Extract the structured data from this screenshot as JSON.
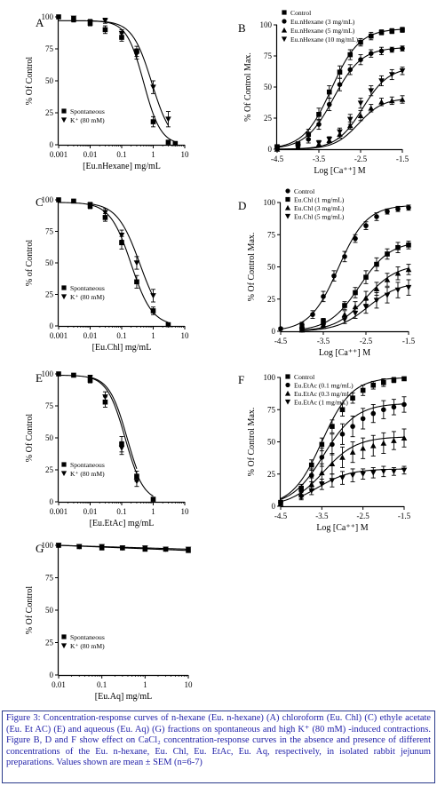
{
  "figure": {
    "caption": "Figure 3: Concentration-response curves of n-hexane (Eu. n-hexane) (A) chloroform (Eu. Chl) (C) ethyle acetate (Eu. Et AC) (E) and aqueous (Eu. Aq) (G) fractions on spontaneous and high K⁺ (80 mM) -induced contractions. Figure B, D and F show effect on CaCl₂ concentration-response curves in the absence and presence of different concentrations of the Eu. n-hexane, Eu. Chl, Eu. EtAc, Eu. Aq, respectively, in isolated rabbit jejunum preparations. Values shown are mean ± SEM (n=6-7)"
  },
  "chart_data": [
    {
      "id": "A",
      "panel_label": "A",
      "type": "line",
      "xscale": "log",
      "xlim": [
        0.001,
        10
      ],
      "ylim": [
        0,
        100
      ],
      "xticks": [
        "0.001",
        "0.01",
        "0.1",
        "1",
        "10"
      ],
      "yticks": [
        "0",
        "25",
        "50",
        "75",
        "100"
      ],
      "xlabel": "[Eu.nHexane] mg/mL",
      "ylabel": "% Of Control",
      "legend_position": "bottom-left",
      "series": [
        {
          "name": "Spontaneous",
          "marker": "square",
          "x": [
            0.001,
            0.003,
            0.01,
            0.03,
            0.1,
            0.3,
            1,
            3,
            5
          ],
          "y": [
            100,
            98,
            95,
            90,
            84,
            73,
            18,
            2,
            1
          ],
          "err": [
            0,
            2,
            2,
            3,
            3,
            4,
            4,
            1,
            1
          ],
          "curve": {
            "top": 97,
            "ec50": 0.5,
            "hill": 1.6
          }
        },
        {
          "name": "K⁺ (80 mM)",
          "marker": "tri-down",
          "x": [
            0.003,
            0.01,
            0.03,
            0.1,
            0.3,
            1,
            3
          ],
          "y": [
            99,
            96,
            97,
            87,
            71,
            45,
            20
          ],
          "err": [
            1,
            2,
            2,
            3,
            4,
            5,
            6
          ],
          "curve": {
            "top": 97,
            "ec50": 0.9,
            "hill": 1.4
          }
        }
      ]
    },
    {
      "id": "B",
      "panel_label": "B",
      "type": "line",
      "xlim": [
        -4.5,
        -1.5
      ],
      "ylim": [
        0,
        100
      ],
      "xticks": [
        "-4.5",
        "-3.5",
        "-2.5",
        "-1.5"
      ],
      "yticks": [
        "0",
        "25",
        "50",
        "75",
        "100"
      ],
      "xlabel": "Log [Ca⁺⁺] M",
      "ylabel": "% Of Control Max.",
      "legend_position": "top-left",
      "series": [
        {
          "name": "Control",
          "marker": "square",
          "x": [
            -4.5,
            -4.0,
            -3.75,
            -3.5,
            -3.25,
            -3.0,
            -2.75,
            -2.5,
            -2.25,
            -2.0,
            -1.75,
            -1.5
          ],
          "y": [
            2,
            4,
            12,
            28,
            46,
            62,
            76,
            86,
            91,
            94,
            95,
            96
          ],
          "err": [
            1,
            2,
            4,
            5,
            5,
            5,
            4,
            3,
            3,
            2,
            2,
            2
          ],
          "curve": {
            "bottom": 0,
            "top": 97,
            "ec50": -3.2,
            "hill": 1.3
          }
        },
        {
          "name": "Eu.nHexane (3 mg/mL)",
          "marker": "circle",
          "x": [
            -4.5,
            -4.0,
            -3.75,
            -3.5,
            -3.25,
            -3.0,
            -2.75,
            -2.5,
            -2.25,
            -2.0,
            -1.75,
            -1.5
          ],
          "y": [
            1,
            3,
            8,
            20,
            36,
            52,
            64,
            72,
            77,
            79,
            80,
            81
          ],
          "err": [
            1,
            2,
            3,
            4,
            5,
            5,
            4,
            4,
            3,
            3,
            2,
            2
          ],
          "curve": {
            "bottom": 0,
            "top": 82,
            "ec50": -3.15,
            "hill": 1.3
          }
        },
        {
          "name": "Eu.nHexane (5 mg/mL)",
          "marker": "tri-up",
          "x": [
            -4.5,
            -4.0,
            -3.5,
            -3.25,
            -3.0,
            -2.75,
            -2.5,
            -2.25,
            -2.0,
            -1.75,
            -1.5
          ],
          "y": [
            0,
            2,
            4,
            7,
            12,
            19,
            27,
            33,
            38,
            39,
            40
          ],
          "err": [
            0,
            1,
            2,
            2,
            3,
            3,
            4,
            3,
            3,
            3,
            3
          ],
          "curve": {
            "bottom": 0,
            "top": 41,
            "ec50": -2.55,
            "hill": 1.5
          }
        },
        {
          "name": "Eu.nHexane (10 mg/mL)",
          "marker": "tri-down",
          "x": [
            -4.5,
            -4.0,
            -3.5,
            -3.25,
            -3.0,
            -2.75,
            -2.5,
            -2.25,
            -2.0,
            -1.75,
            -1.5
          ],
          "y": [
            1,
            2,
            5,
            8,
            14,
            24,
            37,
            47,
            55,
            60,
            63
          ],
          "err": [
            0,
            1,
            2,
            2,
            3,
            4,
            4,
            4,
            4,
            4,
            3
          ],
          "curve": {
            "bottom": 0,
            "top": 66,
            "ec50": -2.45,
            "hill": 1.4
          }
        }
      ]
    },
    {
      "id": "C",
      "panel_label": "C",
      "type": "line",
      "xscale": "log",
      "xlim": [
        0.001,
        10
      ],
      "ylim": [
        0,
        100
      ],
      "xticks": [
        "0.001",
        "0.01",
        "0.1",
        "1",
        "10"
      ],
      "yticks": [
        "0",
        "25",
        "50",
        "75",
        "100"
      ],
      "xlabel": "[Eu.Chl] mg/mL",
      "ylabel": "% of Control",
      "legend_position": "bottom-left",
      "series": [
        {
          "name": "Spontaneous",
          "marker": "square",
          "x": [
            0.001,
            0.003,
            0.01,
            0.03,
            0.1,
            0.3,
            1,
            3
          ],
          "y": [
            100,
            99,
            95,
            86,
            66,
            35,
            12,
            1
          ],
          "err": [
            0,
            1,
            2,
            3,
            5,
            5,
            3,
            1
          ],
          "curve": {
            "top": 98,
            "ec50": 0.2,
            "hill": 1.3
          }
        },
        {
          "name": "K⁺ (80 mM)",
          "marker": "tri-down",
          "x": [
            0.01,
            0.03,
            0.1,
            0.3,
            1
          ],
          "y": [
            96,
            90,
            72,
            50,
            24
          ],
          "err": [
            2,
            3,
            4,
            5,
            5
          ],
          "curve": {
            "top": 98,
            "ec50": 0.38,
            "hill": 1.2
          }
        }
      ]
    },
    {
      "id": "D",
      "panel_label": "D",
      "type": "line",
      "xlim": [
        -4.5,
        -1.5
      ],
      "ylim": [
        0,
        100
      ],
      "xticks": [
        "-4.5",
        "-3.5",
        "-2.5",
        "-1.5"
      ],
      "yticks": [
        "0",
        "25",
        "50",
        "75",
        "100"
      ],
      "xlabel": "Log [Ca⁺⁺] M",
      "ylabel": "% Of Control Max.",
      "legend_position": "top-left",
      "series": [
        {
          "name": "Control",
          "marker": "circle",
          "x": [
            -4.5,
            -4.0,
            -3.75,
            -3.5,
            -3.25,
            -3.0,
            -2.75,
            -2.5,
            -2.25,
            -2.0,
            -1.75,
            -1.5
          ],
          "y": [
            2,
            5,
            13,
            27,
            43,
            58,
            72,
            82,
            89,
            93,
            95,
            96
          ],
          "err": [
            1,
            2,
            3,
            4,
            4,
            4,
            3,
            3,
            3,
            2,
            2,
            2
          ],
          "curve": {
            "bottom": 0,
            "top": 98,
            "ec50": -3.15,
            "hill": 1.3
          }
        },
        {
          "name": "Eu.Chl (1 mg/mL)",
          "marker": "square",
          "x": [
            -4.0,
            -3.5,
            -3.0,
            -2.75,
            -2.5,
            -2.25,
            -2.0,
            -1.75,
            -1.5
          ],
          "y": [
            2,
            8,
            20,
            30,
            42,
            52,
            60,
            65,
            67
          ],
          "err": [
            1,
            2,
            3,
            4,
            5,
            5,
            4,
            4,
            3
          ],
          "curve": {
            "bottom": 0,
            "top": 70,
            "ec50": -2.65,
            "hill": 1.2
          }
        },
        {
          "name": "Eu.Chl (3 mg/mL)",
          "marker": "tri-up",
          "x": [
            -4.0,
            -3.5,
            -3.0,
            -2.75,
            -2.5,
            -2.25,
            -2.0,
            -1.75,
            -1.5
          ],
          "y": [
            1,
            5,
            13,
            19,
            26,
            33,
            40,
            45,
            48
          ],
          "err": [
            1,
            2,
            3,
            4,
            5,
            5,
            5,
            5,
            4
          ],
          "curve": {
            "bottom": 0,
            "top": 52,
            "ec50": -2.5,
            "hill": 1.2
          }
        },
        {
          "name": "Eu.Chl (5 mg/mL)",
          "marker": "tri-down",
          "x": [
            -4.0,
            -3.5,
            -3.0,
            -2.75,
            -2.5,
            -2.25,
            -2.0,
            -1.75,
            -1.5
          ],
          "y": [
            1,
            4,
            9,
            14,
            19,
            24,
            28,
            32,
            34
          ],
          "err": [
            1,
            2,
            3,
            4,
            5,
            6,
            6,
            6,
            6
          ],
          "curve": {
            "bottom": 0,
            "top": 38,
            "ec50": -2.45,
            "hill": 1.2
          }
        }
      ]
    },
    {
      "id": "E",
      "panel_label": "E",
      "type": "line",
      "xscale": "log",
      "xlim": [
        0.001,
        10
      ],
      "ylim": [
        0,
        100
      ],
      "xticks": [
        "0.001",
        "0.01",
        "0.1",
        "1",
        "10"
      ],
      "yticks": [
        "0",
        "25",
        "50",
        "75",
        "100"
      ],
      "xlabel": "[Eu.EtAc] mg/mL",
      "ylabel": "% Of Control",
      "legend_position": "bottom-left",
      "series": [
        {
          "name": "Spontaneous",
          "marker": "square",
          "x": [
            0.001,
            0.003,
            0.01,
            0.03,
            0.1,
            0.3,
            1
          ],
          "y": [
            100,
            99,
            95,
            78,
            45,
            20,
            2
          ],
          "err": [
            0,
            1,
            2,
            4,
            6,
            4,
            1
          ],
          "curve": {
            "top": 99,
            "ec50": 0.13,
            "hill": 1.5
          }
        },
        {
          "name": "K⁺ (80 mM)",
          "marker": "tri-down",
          "x": [
            0.01,
            0.03,
            0.1,
            0.3
          ],
          "y": [
            97,
            82,
            42,
            16
          ],
          "err": [
            2,
            4,
            5,
            4
          ],
          "curve": {
            "top": 99,
            "ec50": 0.15,
            "hill": 1.5
          }
        }
      ]
    },
    {
      "id": "F",
      "panel_label": "F",
      "type": "line",
      "xlim": [
        -4.5,
        -1.5
      ],
      "ylim": [
        0,
        100
      ],
      "xticks": [
        "-4.5",
        "-3.5",
        "-2.5",
        "-1.5"
      ],
      "yticks": [
        "0",
        "25",
        "50",
        "75",
        "100"
      ],
      "xlabel": "Log [Ca⁺⁺] M",
      "ylabel": "% Of Control Max.",
      "legend_position": "top-left",
      "series": [
        {
          "name": "Control",
          "marker": "square",
          "x": [
            -4.5,
            -4.0,
            -3.75,
            -3.5,
            -3.25,
            -3.0,
            -2.75,
            -2.5,
            -2.25,
            -2.0,
            -1.75,
            -1.5
          ],
          "y": [
            3,
            14,
            32,
            48,
            62,
            75,
            84,
            90,
            94,
            96,
            98,
            99
          ],
          "err": [
            1,
            3,
            4,
            5,
            5,
            5,
            4,
            4,
            3,
            3,
            2,
            1
          ],
          "curve": {
            "bottom": 0,
            "top": 100,
            "ec50": -3.5,
            "hill": 1.2
          }
        },
        {
          "name": "Eu.EtAc (0.1 mg/mL)",
          "marker": "circle",
          "x": [
            -4.5,
            -4.0,
            -3.75,
            -3.5,
            -3.25,
            -3.0,
            -2.75,
            -2.5,
            -2.25,
            -2.0,
            -1.75,
            -1.5
          ],
          "y": [
            3,
            12,
            24,
            38,
            48,
            56,
            62,
            68,
            72,
            75,
            77,
            79
          ],
          "err": [
            1,
            3,
            5,
            7,
            8,
            8,
            8,
            8,
            7,
            7,
            6,
            6
          ],
          "curve": {
            "bottom": 0,
            "top": 80,
            "ec50": -3.45,
            "hill": 1.1
          }
        },
        {
          "name": "Eu.EtAc (0.3 mg/mL)",
          "marker": "tri-up",
          "x": [
            -4.5,
            -4.0,
            -3.75,
            -3.5,
            -3.25,
            -3.0,
            -2.75,
            -2.5,
            -2.25,
            -2.0,
            -1.75,
            -1.5
          ],
          "y": [
            2,
            9,
            17,
            26,
            33,
            38,
            42,
            45,
            47,
            49,
            51,
            53
          ],
          "err": [
            1,
            3,
            5,
            7,
            8,
            8,
            8,
            8,
            8,
            8,
            7,
            7
          ],
          "curve": {
            "bottom": 0,
            "top": 54,
            "ec50": -3.45,
            "hill": 1.1
          }
        },
        {
          "name": "Eu.EtAc (1 mg/mL)",
          "marker": "tri-down",
          "x": [
            -4.0,
            -3.75,
            -3.5,
            -3.25,
            -3.0,
            -2.75,
            -2.5,
            -2.25,
            -2.0,
            -1.75,
            -1.5
          ],
          "y": [
            7,
            12,
            17,
            20,
            22,
            24,
            25,
            26,
            27,
            27,
            28
          ],
          "err": [
            2,
            3,
            4,
            5,
            5,
            5,
            4,
            4,
            4,
            3,
            3
          ],
          "curve": {
            "bottom": 0,
            "top": 29,
            "ec50": -3.6,
            "hill": 1.1
          }
        }
      ]
    },
    {
      "id": "G",
      "panel_label": "G",
      "type": "line",
      "xscale": "log",
      "xlim": [
        0.01,
        10
      ],
      "ylim": [
        0,
        100
      ],
      "xticks": [
        "0.01",
        "0.1",
        "1",
        "10"
      ],
      "yticks": [
        "0",
        "25",
        "50",
        "75",
        "100"
      ],
      "xlabel": "[Eu.Aq] mg/mL",
      "ylabel": "% Of Control",
      "legend_position": "bottom-left",
      "series": [
        {
          "name": "Spontaneous",
          "marker": "square",
          "x": [
            0.01,
            0.03,
            0.1,
            0.3,
            1,
            3,
            10
          ],
          "y": [
            100,
            99,
            98,
            98,
            97,
            97,
            96
          ],
          "err": [
            0,
            1,
            1,
            1,
            1,
            1,
            1
          ],
          "flat": true
        },
        {
          "name": "K⁺ (80 mM)",
          "marker": "tri-down",
          "x": [
            0.01,
            0.03,
            0.1,
            0.3,
            1,
            3,
            10
          ],
          "y": [
            100,
            99,
            99,
            98,
            98,
            97,
            97
          ],
          "err": [
            0,
            1,
            1,
            1,
            1,
            1,
            1
          ],
          "flat": true
        }
      ]
    }
  ]
}
